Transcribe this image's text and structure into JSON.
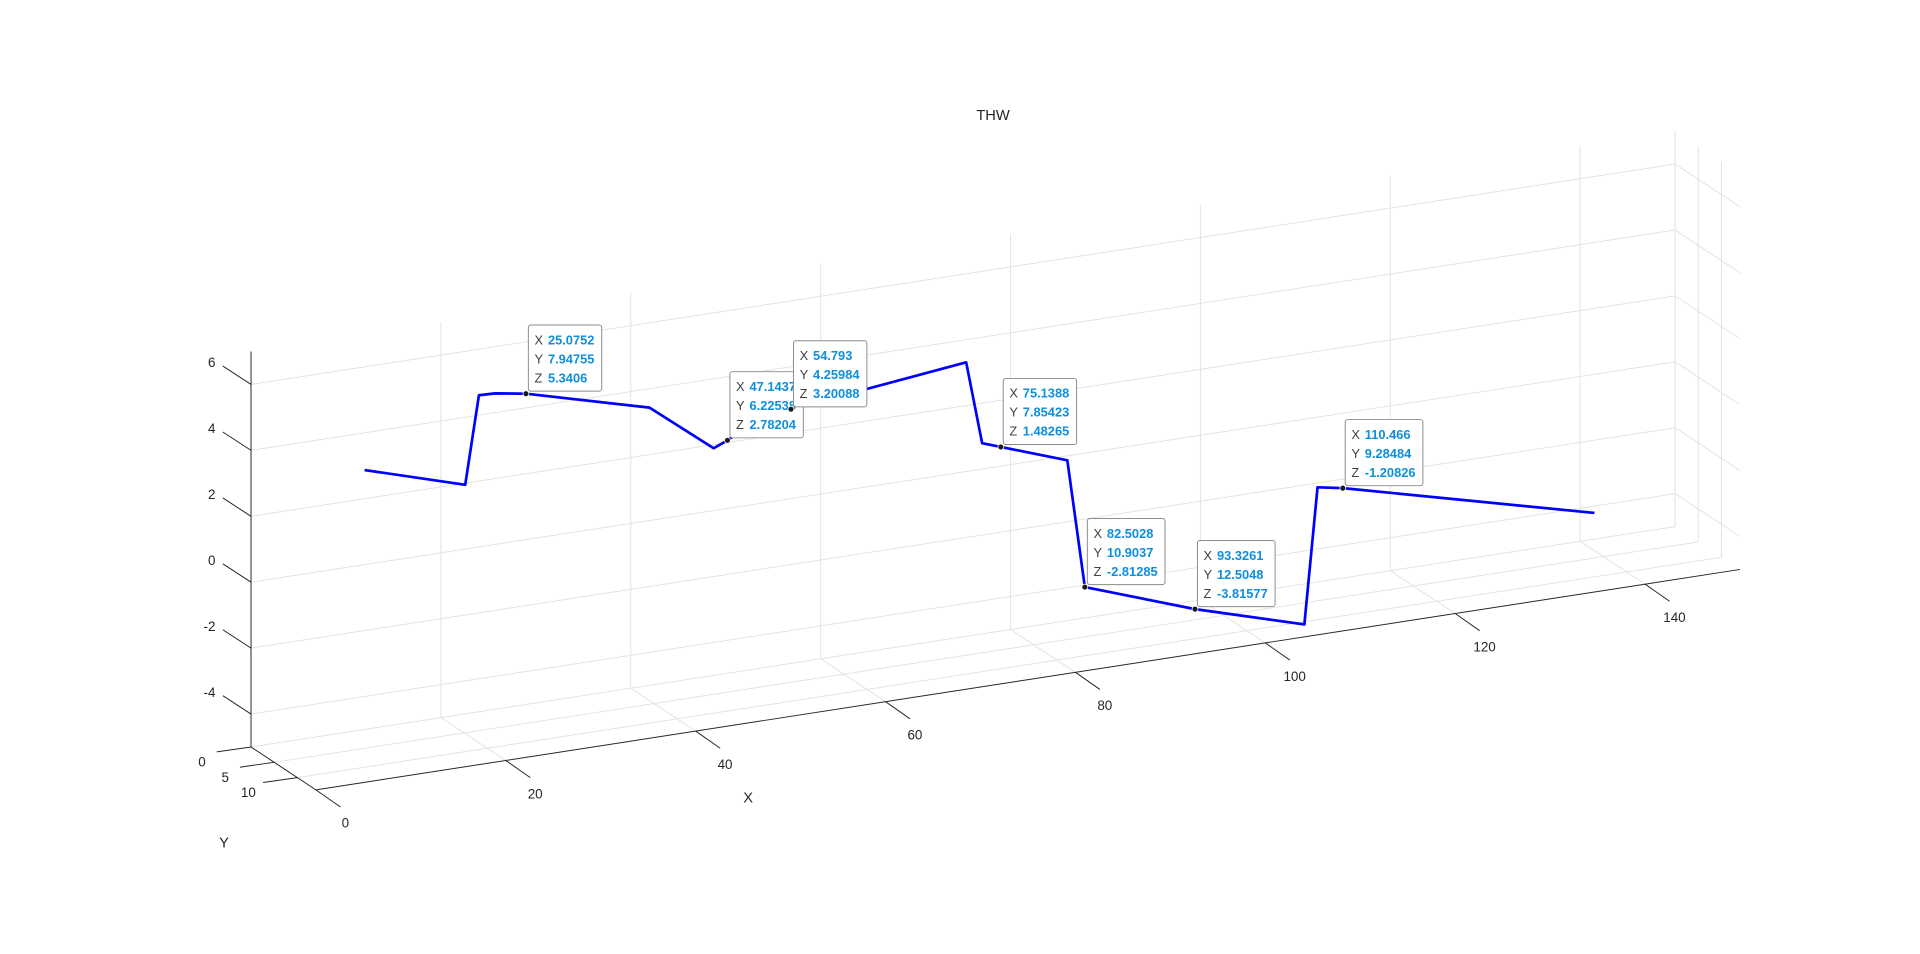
{
  "chart_data": {
    "type": "line3d",
    "title": "THW",
    "xlabel": "X",
    "ylabel": "Y",
    "color": "#0000ff",
    "grid": true,
    "xlim": [
      0,
      150
    ],
    "ylim": [
      0,
      14
    ],
    "zlim": [
      -5,
      7
    ],
    "xticks": [
      0,
      20,
      40,
      60,
      80,
      100,
      120,
      140
    ],
    "yticks": [
      0,
      5,
      10
    ],
    "zticks": [
      -4,
      -2,
      0,
      2,
      4,
      6
    ],
    "x": [
      8.3,
      18.9,
      20.1,
      21.8,
      25.0752,
      38.8,
      45.8,
      47.1437,
      50.4,
      54.793,
      72.4,
      73.2,
      75.1388,
      81.1,
      82.5028,
      93.3261,
      104.7,
      107.7,
      110.466,
      137.6
    ],
    "y": [
      7.5,
      7.5,
      8,
      8,
      7.94755,
      6.5,
      6,
      6.22538,
      5.2,
      4.25984,
      6,
      7.8,
      7.85423,
      10,
      10.9037,
      12.5048,
      12.8,
      9.5,
      9.28484,
      8
    ],
    "z": [
      3.73,
      2.81,
      5.52,
      5.5,
      5.3406,
      4.17,
      2.58,
      2.78204,
      3.09,
      3.20088,
      4.0,
      1.68,
      1.48265,
      1.01,
      -2.81285,
      -3.81577,
      -4.76,
      -1.04,
      -1.20826,
      -3.29
    ],
    "datatip_labels": [
      "X",
      "Y",
      "Z"
    ],
    "datatips": [
      {
        "x": 25.0752,
        "y": 7.94755,
        "z": 5.3406
      },
      {
        "x": 47.1437,
        "y": 6.22538,
        "z": 2.78204
      },
      {
        "x": 54.793,
        "y": 4.25984,
        "z": 3.20088
      },
      {
        "x": 75.1388,
        "y": 7.85423,
        "z": 1.48265
      },
      {
        "x": 82.5028,
        "y": 10.9037,
        "z": -2.81285
      },
      {
        "x": 93.3261,
        "y": 12.5048,
        "z": -3.81577
      },
      {
        "x": 110.466,
        "y": 9.28484,
        "z": -1.20826
      }
    ]
  }
}
